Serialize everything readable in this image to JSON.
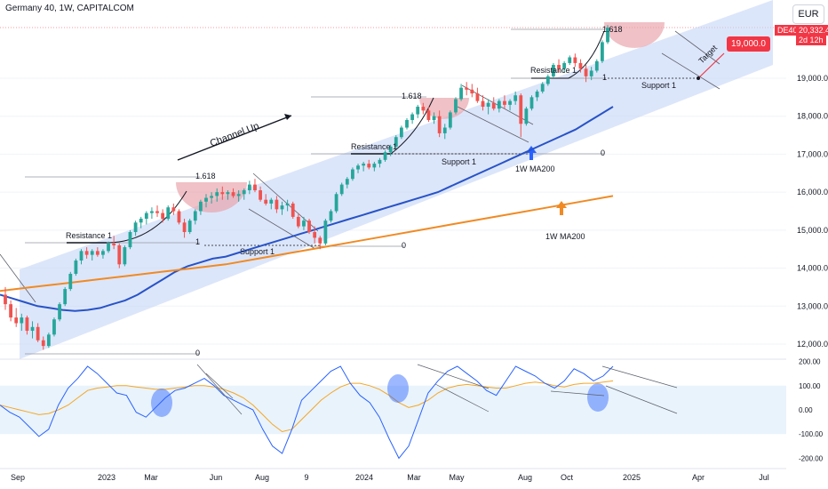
{
  "header": {
    "title": "Germany 40, 1W, CAPITALCOM"
  },
  "currency": "EUR",
  "price_tag": {
    "symbol": "DE40",
    "price": "20,332.4",
    "countdown": "2d 12h"
  },
  "target_tag": "19,000.0",
  "colors": {
    "channel": "#c5d5f7",
    "ma50": "#2853c7",
    "ma200": "#f08a24",
    "up": "#26a69a",
    "down": "#ef5350",
    "highlight": "#e8a0a8",
    "arrow_blue": "#2962ff",
    "arrow_orange": "#f08a24",
    "rsi": "#2962ff",
    "rsi_ma": "#f5a623",
    "tag_red": "#f23645"
  },
  "annotations": {
    "channel_up": "Channel Up",
    "resistance": "Resistance 1",
    "support": "Support 1",
    "fib_high": "1.618",
    "fib_one": "1",
    "fib_zero": "0",
    "target": "Target",
    "ma50_label": "1W MA200",
    "ma200_label": "1W MA200"
  },
  "chart_data": [
    {
      "type": "candlestick",
      "title": "Germany 40, 1W, CAPITALCOM",
      "y_ticks": [
        12000,
        13000,
        14000,
        15000,
        16000,
        17000,
        18000,
        19000
      ],
      "x_ticks": [
        "Sep",
        "2023",
        "Mar",
        "Jun",
        "Aug",
        "9",
        "2024",
        "Mar",
        "May",
        "Aug",
        "Oct",
        "2025",
        "Apr",
        "Jul"
      ],
      "candles": [
        [
          13300,
          13500,
          12900,
          13050
        ],
        [
          13050,
          13150,
          12600,
          12700
        ],
        [
          12700,
          12950,
          12450,
          12550
        ],
        [
          12550,
          12800,
          12350,
          12700
        ],
        [
          12700,
          12750,
          12250,
          12350
        ],
        [
          12350,
          12600,
          12150,
          12450
        ],
        [
          12450,
          12550,
          12050,
          12100
        ],
        [
          12100,
          12200,
          11850,
          11950
        ],
        [
          11950,
          12300,
          11900,
          12250
        ],
        [
          12250,
          12700,
          12200,
          12650
        ],
        [
          12650,
          13100,
          12600,
          13050
        ],
        [
          13050,
          13500,
          13000,
          13450
        ],
        [
          13450,
          13900,
          13400,
          13850
        ],
        [
          13850,
          14250,
          13800,
          14200
        ],
        [
          14200,
          14500,
          14100,
          14450
        ],
        [
          14450,
          14550,
          14250,
          14350
        ],
        [
          14350,
          14500,
          14200,
          14450
        ],
        [
          14450,
          14550,
          14300,
          14350
        ],
        [
          14350,
          14500,
          14250,
          14450
        ],
        [
          14450,
          14700,
          14400,
          14650
        ],
        [
          14650,
          14850,
          14500,
          14600
        ],
        [
          14600,
          14650,
          14000,
          14100
        ],
        [
          14100,
          14600,
          14050,
          14550
        ],
        [
          14550,
          15000,
          14500,
          14950
        ],
        [
          14950,
          15250,
          14850,
          15200
        ],
        [
          15200,
          15350,
          15050,
          15300
        ],
        [
          15300,
          15500,
          15150,
          15450
        ],
        [
          15450,
          15600,
          15300,
          15500
        ],
        [
          15500,
          15650,
          15350,
          15450
        ],
        [
          15450,
          15550,
          15200,
          15300
        ],
        [
          15300,
          15650,
          15250,
          15600
        ],
        [
          15600,
          15700,
          15400,
          15500
        ],
        [
          15500,
          15550,
          15150,
          15200
        ],
        [
          15200,
          15300,
          14800,
          14950
        ],
        [
          14950,
          15300,
          14900,
          15250
        ],
        [
          15250,
          15550,
          15150,
          15500
        ],
        [
          15500,
          15800,
          15400,
          15750
        ],
        [
          15750,
          15950,
          15600,
          15850
        ],
        [
          15850,
          16000,
          15700,
          15900
        ],
        [
          15900,
          16100,
          15750,
          16000
        ],
        [
          16000,
          16150,
          15800,
          15950
        ],
        [
          15950,
          16050,
          15800,
          16000
        ],
        [
          16000,
          16100,
          15850,
          15900
        ],
        [
          15900,
          16050,
          15750,
          15950
        ],
        [
          15950,
          16100,
          15800,
          16050
        ],
        [
          16050,
          16300,
          15950,
          16200
        ],
        [
          16200,
          16350,
          16000,
          16050
        ],
        [
          16050,
          16150,
          15750,
          15800
        ],
        [
          15800,
          15950,
          15650,
          15700
        ],
        [
          15700,
          15850,
          15550,
          15800
        ],
        [
          15800,
          15900,
          15450,
          15550
        ],
        [
          15550,
          15750,
          15400,
          15650
        ],
        [
          15650,
          15800,
          15500,
          15700
        ],
        [
          15700,
          15750,
          15300,
          15350
        ],
        [
          15350,
          15450,
          15050,
          15100
        ],
        [
          15100,
          15350,
          15000,
          15250
        ],
        [
          15250,
          15300,
          14900,
          14950
        ],
        [
          14950,
          15100,
          14650,
          14800
        ],
        [
          14800,
          14850,
          14500,
          14650
        ],
        [
          14650,
          15300,
          14600,
          15250
        ],
        [
          15250,
          15550,
          15200,
          15500
        ],
        [
          15500,
          16000,
          15450,
          15950
        ],
        [
          15950,
          16250,
          15900,
          16200
        ],
        [
          16200,
          16400,
          16100,
          16350
        ],
        [
          16350,
          16650,
          16300,
          16600
        ],
        [
          16600,
          16750,
          16500,
          16700
        ],
        [
          16700,
          16800,
          16550,
          16750
        ],
        [
          16750,
          16850,
          16600,
          16650
        ],
        [
          16650,
          16800,
          16550,
          16750
        ],
        [
          16750,
          16900,
          16650,
          16850
        ],
        [
          16850,
          17100,
          16800,
          17050
        ],
        [
          17050,
          17250,
          16950,
          17200
        ],
        [
          17200,
          17500,
          17150,
          17450
        ],
        [
          17450,
          17750,
          17400,
          17700
        ],
        [
          17700,
          17950,
          17650,
          17900
        ],
        [
          17900,
          18100,
          17800,
          18050
        ],
        [
          18050,
          18300,
          17950,
          18250
        ],
        [
          18250,
          18350,
          18050,
          18150
        ],
        [
          18150,
          18250,
          17850,
          17900
        ],
        [
          17900,
          18100,
          17800,
          18000
        ],
        [
          18000,
          18150,
          17450,
          17550
        ],
        [
          17550,
          17800,
          17400,
          17700
        ],
        [
          17700,
          18150,
          17650,
          18100
        ],
        [
          18100,
          18500,
          18050,
          18450
        ],
        [
          18450,
          18850,
          18400,
          18750
        ],
        [
          18750,
          18900,
          18550,
          18700
        ],
        [
          18700,
          18850,
          18500,
          18600
        ],
        [
          18600,
          18750,
          18350,
          18400
        ],
        [
          18400,
          18550,
          18150,
          18250
        ],
        [
          18250,
          18450,
          18050,
          18350
        ],
        [
          18350,
          18500,
          18150,
          18200
        ],
        [
          18200,
          18450,
          18100,
          18400
        ],
        [
          18400,
          18550,
          18200,
          18300
        ],
        [
          18300,
          18450,
          18150,
          18400
        ],
        [
          18400,
          18650,
          18300,
          18550
        ],
        [
          18550,
          18600,
          17450,
          17800
        ],
        [
          17800,
          18250,
          17750,
          18200
        ],
        [
          18200,
          18550,
          18150,
          18500
        ],
        [
          18500,
          18700,
          18400,
          18650
        ],
        [
          18650,
          18900,
          18600,
          18850
        ],
        [
          18850,
          19100,
          18800,
          19050
        ],
        [
          19050,
          19400,
          19000,
          19350
        ],
        [
          19350,
          19500,
          19150,
          19250
        ],
        [
          19250,
          19450,
          19150,
          19400
        ],
        [
          19400,
          19600,
          19350,
          19550
        ],
        [
          19550,
          19650,
          19300,
          19400
        ],
        [
          19400,
          19500,
          19150,
          19250
        ],
        [
          19250,
          19350,
          18900,
          19050
        ],
        [
          19050,
          19300,
          18950,
          19200
        ],
        [
          19200,
          19500,
          19150,
          19450
        ],
        [
          19450,
          20000,
          19400,
          19950
        ],
        [
          19950,
          20400,
          19900,
          20330
        ]
      ],
      "ma50": [
        13300,
        13200,
        13100,
        13000,
        12950,
        12900,
        12870,
        12900,
        12950,
        13050,
        13150,
        13300,
        13500,
        13700,
        13900,
        14050,
        14150,
        14250,
        14300,
        14400,
        14500,
        14600,
        14700,
        14800,
        14900,
        15000,
        15100,
        15200,
        15300,
        15400,
        15500,
        15600,
        15700,
        15800,
        15900,
        16000,
        16150,
        16300,
        16450,
        16600,
        16750,
        16900,
        17050,
        17200,
        17350,
        17500,
        17650,
        17850,
        18050,
        18250
      ],
      "ma200": [
        13400,
        13500,
        13600,
        13700,
        13800,
        13900,
        14000,
        14100,
        14250,
        14400,
        14550,
        14700,
        14850,
        15000,
        15150,
        15300,
        15450,
        15600,
        15750,
        15900
      ],
      "rsi": [
        20,
        -10,
        -30,
        -70,
        -110,
        -80,
        20,
        90,
        130,
        180,
        150,
        110,
        70,
        60,
        -10,
        -30,
        10,
        50,
        80,
        90,
        110,
        130,
        100,
        60,
        40,
        20,
        0,
        -80,
        -150,
        -180,
        -80,
        40,
        80,
        120,
        160,
        180,
        110,
        60,
        30,
        -30,
        -120,
        -200,
        -150,
        -40,
        70,
        120,
        160,
        180,
        150,
        120,
        80,
        60,
        120,
        180,
        160,
        140,
        110,
        90,
        120,
        170,
        150,
        120,
        140,
        180
      ],
      "rsi_ma": [
        20,
        10,
        0,
        -10,
        -20,
        -15,
        0,
        20,
        50,
        80,
        90,
        95,
        100,
        100,
        95,
        90,
        85,
        85,
        90,
        95,
        100,
        100,
        95,
        85,
        70,
        50,
        20,
        -20,
        -60,
        -90,
        -80,
        -40,
        0,
        40,
        70,
        95,
        110,
        110,
        100,
        85,
        60,
        30,
        10,
        20,
        40,
        70,
        90,
        100,
        105,
        100,
        95,
        90,
        90,
        100,
        110,
        115,
        110,
        100,
        95,
        105,
        110,
        110,
        115,
        120
      ],
      "rsi_ticks": [
        200,
        100,
        0,
        -100,
        -200
      ]
    }
  ]
}
